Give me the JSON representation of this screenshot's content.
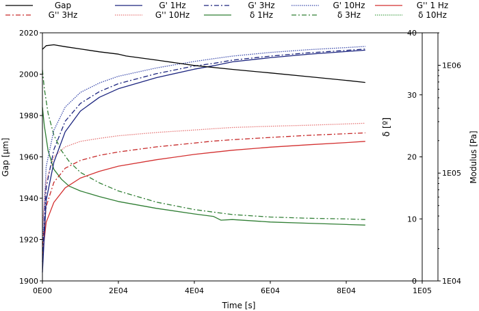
{
  "chart_data": {
    "type": "line",
    "xlabel": "Time [s]",
    "ylabel_left": "Gap [µm]",
    "ylabel_mid": "δ [º]",
    "ylabel_right": "Modulus [Pa]",
    "xlim": [
      0,
      100000
    ],
    "ylim_left": [
      1900,
      2020
    ],
    "ylim_mid": [
      0,
      40
    ],
    "ylim_right_log": [
      10000,
      2000000
    ],
    "x_ticks": [
      {
        "v": 0,
        "label": "0E00"
      },
      {
        "v": 20000,
        "label": "2E04"
      },
      {
        "v": 40000,
        "label": "4E04"
      },
      {
        "v": 60000,
        "label": "6E04"
      },
      {
        "v": 80000,
        "label": "8E04"
      },
      {
        "v": 100000,
        "label": "1E05"
      }
    ],
    "y_left_ticks": [
      {
        "v": 1900,
        "label": "1900"
      },
      {
        "v": 1920,
        "label": "1920"
      },
      {
        "v": 1940,
        "label": "1940"
      },
      {
        "v": 1960,
        "label": "1960"
      },
      {
        "v": 1980,
        "label": "1980"
      },
      {
        "v": 2000,
        "label": "2000"
      },
      {
        "v": 2020,
        "label": "2020"
      }
    ],
    "y_mid_ticks": [
      {
        "v": 0,
        "label": "0"
      },
      {
        "v": 10,
        "label": "10"
      },
      {
        "v": 20,
        "label": "20"
      },
      {
        "v": 30,
        "label": "30"
      },
      {
        "v": 40,
        "label": "40"
      }
    ],
    "y_right_ticks": [
      {
        "v": 10000,
        "label": "1E04"
      },
      {
        "v": 100000,
        "label": "1E05"
      },
      {
        "v": 1000000,
        "label": "1E06"
      }
    ],
    "legend_position": "top",
    "series": [
      {
        "name": "Gap",
        "axis": "gap",
        "color": "#000000",
        "dash": "solid",
        "x": [
          0,
          1000,
          3000,
          6000,
          10000,
          15000,
          20000,
          22000,
          30000,
          40000,
          50000,
          60000,
          70000,
          80000,
          85000
        ],
        "y": [
          2012,
          2013.8,
          2014.2,
          2013.3,
          2012.2,
          2010.8,
          2009.7,
          2008.8,
          2006.8,
          2004.2,
          2002.3,
          2000.6,
          1998.8,
          1997,
          1996
        ]
      },
      {
        "name": "G' 1Hz",
        "axis": "modulus",
        "color": "#1a237e",
        "dash": "solid",
        "x": [
          0,
          1000,
          3000,
          6000,
          10000,
          15000,
          20000,
          30000,
          40000,
          45000,
          50000,
          60000,
          70000,
          80000,
          85000
        ],
        "y": [
          12000,
          56000,
          126000,
          242000,
          376000,
          505000,
          606000,
          768000,
          920000,
          990000,
          1075000,
          1175000,
          1265000,
          1340000,
          1380000
        ]
      },
      {
        "name": "G' 3Hz",
        "axis": "modulus",
        "color": "#1a237e",
        "dash": "dashdot",
        "x": [
          0,
          1000,
          3000,
          6000,
          10000,
          15000,
          20000,
          30000,
          40000,
          45000,
          50000,
          60000,
          70000,
          80000,
          85000
        ],
        "y": [
          15000,
          73000,
          165000,
          303000,
          443000,
          570000,
          675000,
          835000,
          985000,
          1040000,
          1115000,
          1215000,
          1305000,
          1375000,
          1415000
        ]
      },
      {
        "name": "G' 10Hz",
        "axis": "modulus",
        "color": "#3949ab",
        "dash": "dot",
        "x": [
          0,
          1000,
          3000,
          6000,
          10000,
          15000,
          20000,
          30000,
          40000,
          45000,
          50000,
          60000,
          70000,
          80000,
          85000
        ],
        "y": [
          22000,
          115000,
          250000,
          410000,
          560000,
          685000,
          790000,
          945000,
          1085000,
          1150000,
          1215000,
          1315000,
          1395000,
          1460000,
          1495000
        ]
      },
      {
        "name": "G'' 1 Hz",
        "axis": "modulus",
        "color": "#d32f2f",
        "dash": "solid",
        "x": [
          0,
          1000,
          3000,
          6000,
          10000,
          15000,
          20000,
          30000,
          40000,
          45000,
          50000,
          60000,
          70000,
          80000,
          85000
        ],
        "y": [
          17000,
          35000,
          53500,
          73000,
          90000,
          104000,
          116000,
          133000,
          149000,
          156000,
          163000,
          174000,
          183000,
          192000,
          197000
        ]
      },
      {
        "name": "G'' 3Hz",
        "axis": "modulus",
        "color": "#c62828",
        "dash": "dashdot",
        "x": [
          0,
          1000,
          3000,
          6000,
          10000,
          15000,
          20000,
          30000,
          40000,
          45000,
          50000,
          60000,
          70000,
          80000,
          85000
        ],
        "y": [
          21000,
          49000,
          82000,
          111000,
          131000,
          146000,
          157000,
          175000,
          190000,
          198000,
          204000,
          214000,
          224000,
          232000,
          236000
        ]
      },
      {
        "name": "G'' 10Hz",
        "axis": "modulus",
        "color": "#e57373",
        "dash": "dot",
        "x": [
          0,
          1000,
          3000,
          6000,
          10000,
          15000,
          20000,
          30000,
          40000,
          45000,
          50000,
          60000,
          70000,
          80000,
          85000
        ],
        "y": [
          32000,
          84000,
          142000,
          175000,
          197000,
          210000,
          222000,
          238000,
          251000,
          258000,
          265000,
          272000,
          278000,
          286000,
          290000
        ]
      },
      {
        "name": "δ 1Hz",
        "axis": "delta",
        "color": "#2e7d32",
        "dash": "solid",
        "x": [
          0,
          500,
          1500,
          3000,
          5000,
          7000,
          10000,
          15000,
          20000,
          30000,
          40000,
          45000,
          47000,
          50000,
          60000,
          70000,
          80000,
          85000
        ],
        "y": [
          28,
          25,
          21,
          18,
          16.4,
          15.3,
          14.5,
          13.6,
          12.8,
          11.7,
          10.8,
          10.4,
          9.8,
          9.9,
          9.5,
          9.3,
          9.1,
          9.0
        ]
      },
      {
        "name": "δ 3Hz",
        "axis": "delta",
        "color": "#2e7d32",
        "dash": "dashdot",
        "x": [
          0,
          500,
          1500,
          3000,
          5000,
          7000,
          10000,
          15000,
          20000,
          30000,
          40000,
          45000,
          50000,
          60000,
          70000,
          80000,
          85000
        ],
        "y": [
          34,
          31,
          27,
          23.5,
          21,
          19.3,
          17.5,
          15.8,
          14.5,
          12.7,
          11.5,
          11.1,
          10.7,
          10.3,
          10.1,
          10.0,
          9.9
        ]
      },
      {
        "name": "δ 10Hz",
        "axis": "delta",
        "color": "#43a047",
        "dash": "dot",
        "x": [
          0,
          500,
          1500,
          3000,
          5000,
          7000,
          10000,
          15000,
          20000,
          30000,
          40000,
          45000,
          50000,
          60000,
          70000,
          80000,
          85000
        ],
        "y": [
          37,
          35.5,
          33,
          30,
          27,
          24.8,
          22.5,
          20,
          18.2,
          15.7,
          14.3,
          13.6,
          12.9,
          12.2,
          11.8,
          11.4,
          11.1
        ]
      }
    ]
  }
}
